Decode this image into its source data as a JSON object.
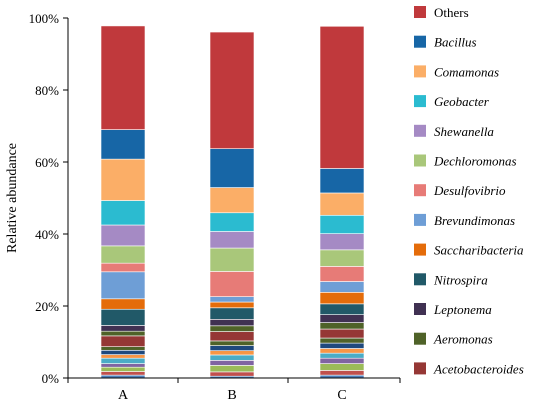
{
  "chart_data": {
    "type": "bar",
    "stacked": true,
    "ylabel": "Relative abundance",
    "ylim": [
      0,
      100
    ],
    "yticks": [
      "0%",
      "20%",
      "40%",
      "60%",
      "80%",
      "100%"
    ],
    "categories": [
      "A",
      "B",
      "C"
    ],
    "legend_position": "right",
    "series": [
      {
        "color": "#4f81bd",
        "values": [
          0.8,
          0.5,
          0.8
        ]
      },
      {
        "color": "#c0504d",
        "values": [
          1.0,
          1.2,
          1.3
        ]
      },
      {
        "color": "#9bbb59",
        "values": [
          1.2,
          1.8,
          1.9
        ]
      },
      {
        "color": "#8064a2",
        "values": [
          1.0,
          1.4,
          1.5
        ]
      },
      {
        "color": "#4bacc6",
        "values": [
          1.5,
          1.5,
          1.4
        ]
      },
      {
        "color": "#f79646",
        "values": [
          1.0,
          1.2,
          1.3
        ]
      },
      {
        "color": "#1f497d",
        "values": [
          1.2,
          1.4,
          1.5
        ]
      },
      {
        "color": "#4f6228",
        "values": [
          1.0,
          1.3,
          1.4
        ]
      },
      {
        "color": "#953735",
        "values": [
          3.0,
          2.6,
          2.5
        ]
      },
      {
        "color": "#4f6228",
        "values": [
          1.3,
          1.6,
          1.8
        ],
        "name": "Aeromonas"
      },
      {
        "color": "#403152",
        "values": [
          1.6,
          1.8,
          2.2
        ],
        "name": "Leptonema"
      },
      {
        "color": "#215968",
        "values": [
          4.5,
          3.2,
          3.0
        ],
        "name": "Nitrospira"
      },
      {
        "color": "#e46c0a",
        "values": [
          2.9,
          1.6,
          3.2
        ],
        "name": "Saccharibacteria"
      },
      {
        "color": "#6e9ed6",
        "values": [
          7.5,
          1.5,
          3.0
        ],
        "name": "Brevundimonas"
      },
      {
        "color": "#e77b77",
        "values": [
          2.4,
          7.0,
          4.2
        ],
        "name": "Desulfovibrio"
      },
      {
        "color": "#a9c77a",
        "values": [
          4.8,
          6.5,
          4.6
        ],
        "name": "Dechloromonas"
      },
      {
        "color": "#a58ac4",
        "values": [
          5.8,
          4.6,
          4.5
        ],
        "name": "Shewanella"
      },
      {
        "color": "#2bbbd0",
        "values": [
          6.8,
          5.2,
          5.1
        ],
        "name": "Geobacter"
      },
      {
        "color": "#fbae67",
        "values": [
          11.5,
          7.0,
          6.2
        ],
        "name": "Comamonas"
      },
      {
        "color": "#1766a6",
        "values": [
          8.2,
          10.8,
          6.8
        ],
        "name": "Bacillus"
      },
      {
        "color": "#c0393c",
        "values": [
          28.8,
          32.4,
          39.5
        ],
        "name": "Others"
      }
    ],
    "legend": [
      {
        "name": "Others",
        "color": "#c0393c",
        "italic": false
      },
      {
        "name": "Bacillus",
        "color": "#1766a6",
        "italic": true
      },
      {
        "name": "Comamonas",
        "color": "#fbae67",
        "italic": true
      },
      {
        "name": "Geobacter",
        "color": "#2bbbd0",
        "italic": true
      },
      {
        "name": "Shewanella",
        "color": "#a58ac4",
        "italic": true
      },
      {
        "name": "Dechloromonas",
        "color": "#a9c77a",
        "italic": true
      },
      {
        "name": "Desulfovibrio",
        "color": "#e77b77",
        "italic": true
      },
      {
        "name": "Brevundimonas",
        "color": "#6e9ed6",
        "italic": true
      },
      {
        "name": "Saccharibacteria",
        "color": "#e46c0a",
        "italic": true
      },
      {
        "name": "Nitrospira",
        "color": "#215968",
        "italic": true
      },
      {
        "name": "Leptonema",
        "color": "#403152",
        "italic": true
      },
      {
        "name": "Aeromonas",
        "color": "#4f6228",
        "italic": true
      },
      {
        "name": "Acetobacteroides",
        "color": "#953735",
        "italic": true
      }
    ]
  }
}
